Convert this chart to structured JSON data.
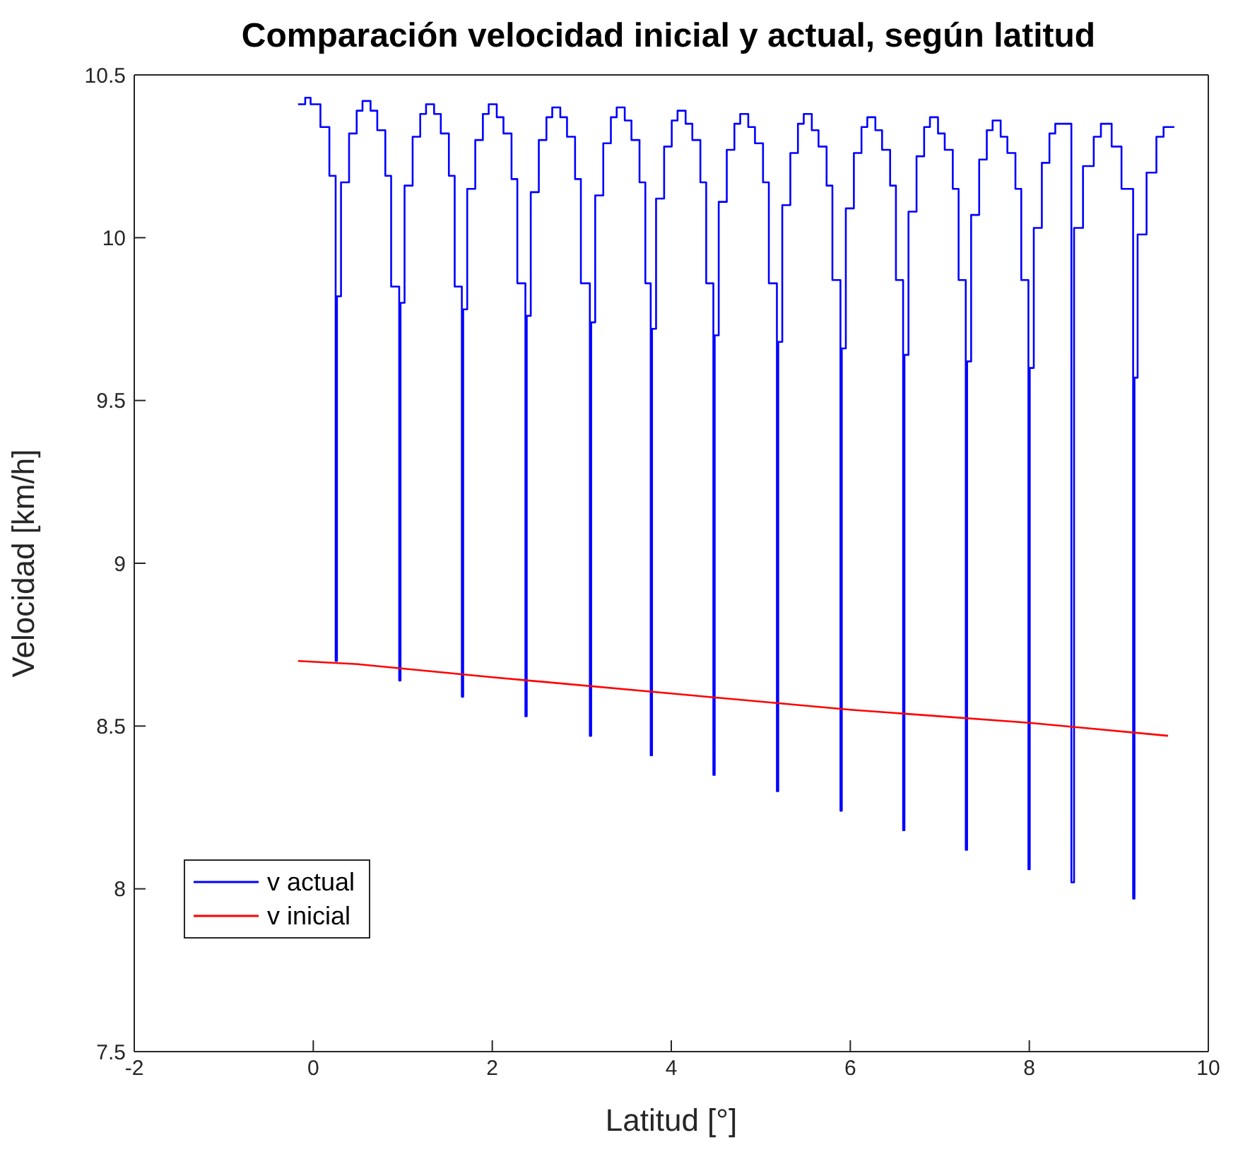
{
  "chart_data": {
    "type": "line",
    "title": "Comparación velocidad inicial y actual, según latitud",
    "xlabel": "Latitud [°]",
    "ylabel": "Velocidad [km/h]",
    "xlim": [
      -2,
      10
    ],
    "xticks": [
      -2,
      0,
      2,
      4,
      6,
      8,
      10
    ],
    "ylim": [
      7.5,
      10.5
    ],
    "yticks": [
      7.5,
      8,
      8.5,
      9,
      9.5,
      10,
      10.5
    ],
    "grid": false,
    "legend": "bottom left",
    "series": [
      {
        "name": "v actual",
        "type": "step",
        "color": "#0000ff",
        "x": [
          -0.17,
          -0.09,
          -0.03,
          0.08,
          0.18,
          0.25,
          0.265,
          0.31,
          0.4,
          0.485,
          0.55,
          0.64,
          0.715,
          0.805,
          0.87,
          0.96,
          0.975,
          1.02,
          1.11,
          1.195,
          1.26,
          1.35,
          1.425,
          1.515,
          1.58,
          1.66,
          1.675,
          1.72,
          1.81,
          1.895,
          1.96,
          2.05,
          2.125,
          2.215,
          2.28,
          2.37,
          2.385,
          2.43,
          2.52,
          2.605,
          2.67,
          2.76,
          2.835,
          2.925,
          2.99,
          3.09,
          3.105,
          3.15,
          3.24,
          3.325,
          3.39,
          3.48,
          3.555,
          3.645,
          3.71,
          3.77,
          3.785,
          3.83,
          3.92,
          4.005,
          4.07,
          4.16,
          4.235,
          4.325,
          4.39,
          4.47,
          4.485,
          4.53,
          4.62,
          4.705,
          4.77,
          4.86,
          4.935,
          5.025,
          5.09,
          5.18,
          5.195,
          5.24,
          5.33,
          5.415,
          5.48,
          5.57,
          5.645,
          5.735,
          5.8,
          5.89,
          5.905,
          5.95,
          6.04,
          6.125,
          6.19,
          6.28,
          6.355,
          6.445,
          6.51,
          6.59,
          6.605,
          6.65,
          6.74,
          6.825,
          6.89,
          6.98,
          7.055,
          7.145,
          7.21,
          7.29,
          7.305,
          7.35,
          7.44,
          7.525,
          7.59,
          7.68,
          7.755,
          7.845,
          7.91,
          7.99,
          8.005,
          8.05,
          8.14,
          8.225,
          8.29,
          8.47,
          8.5,
          8.6,
          8.72,
          8.8,
          8.92,
          9.03,
          9.16,
          9.175,
          9.21,
          9.31,
          9.42,
          9.5,
          9.62
        ],
        "values": [
          10.41,
          10.43,
          10.41,
          10.34,
          10.19,
          8.7,
          9.82,
          10.17,
          10.32,
          10.39,
          10.42,
          10.39,
          10.33,
          10.19,
          9.85,
          8.64,
          9.8,
          10.16,
          10.31,
          10.38,
          10.41,
          10.38,
          10.32,
          10.19,
          9.85,
          8.59,
          9.78,
          10.15,
          10.3,
          10.38,
          10.41,
          10.37,
          10.32,
          10.18,
          9.86,
          8.53,
          9.76,
          10.14,
          10.3,
          10.37,
          10.4,
          10.37,
          10.31,
          10.18,
          9.86,
          8.47,
          9.74,
          10.13,
          10.29,
          10.37,
          10.4,
          10.36,
          10.3,
          10.17,
          9.86,
          8.41,
          9.72,
          10.12,
          10.28,
          10.36,
          10.39,
          10.35,
          10.3,
          10.17,
          9.86,
          8.35,
          9.7,
          10.11,
          10.27,
          10.35,
          10.38,
          10.34,
          10.29,
          10.17,
          9.86,
          8.3,
          9.68,
          10.1,
          10.26,
          10.35,
          10.38,
          10.33,
          10.28,
          10.16,
          9.87,
          8.24,
          9.66,
          10.09,
          10.26,
          10.34,
          10.37,
          10.33,
          10.27,
          10.16,
          9.87,
          8.18,
          9.64,
          10.08,
          10.25,
          10.34,
          10.37,
          10.32,
          10.27,
          10.15,
          9.87,
          8.12,
          9.62,
          10.07,
          10.24,
          10.33,
          10.36,
          10.31,
          10.26,
          10.15,
          9.87,
          8.06,
          9.6,
          10.03,
          10.23,
          10.32,
          10.35,
          8.02,
          10.03,
          10.22,
          10.31,
          10.35,
          10.28,
          10.15,
          7.97,
          9.57,
          10.01,
          10.2,
          10.31,
          10.34,
          10.34
        ]
      },
      {
        "name": "v inicial",
        "type": "line",
        "color": "#ff0000",
        "x": [
          -0.17,
          0.5,
          2,
          4,
          6,
          8,
          9.55
        ],
        "values": [
          8.7,
          8.69,
          8.65,
          8.6,
          8.55,
          8.51,
          8.47
        ]
      }
    ]
  }
}
